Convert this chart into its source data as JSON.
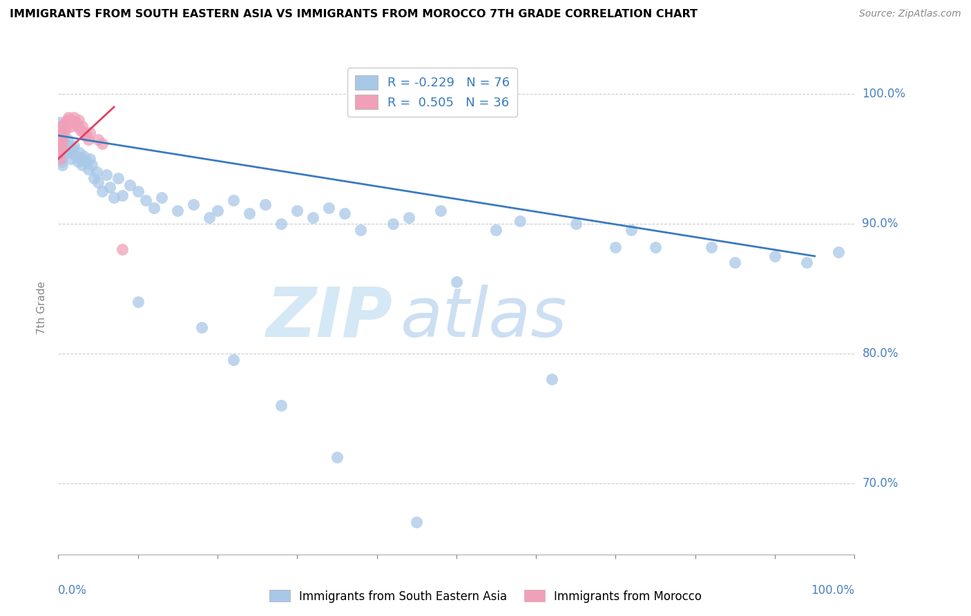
{
  "title": "IMMIGRANTS FROM SOUTH EASTERN ASIA VS IMMIGRANTS FROM MOROCCO 7TH GRADE CORRELATION CHART",
  "source": "Source: ZipAtlas.com",
  "ylabel": "7th Grade",
  "legend1_label": "Immigrants from South Eastern Asia",
  "legend2_label": "Immigrants from Morocco",
  "R1": "-0.229",
  "N1": "76",
  "R2": "0.505",
  "N2": "36",
  "color_blue": "#a8c8e8",
  "color_pink": "#f0a0b8",
  "line_blue": "#3a7abf",
  "line_pink": "#e04060",
  "ytick_vals": [
    0.7,
    0.8,
    0.9,
    1.0
  ],
  "ytick_labels": [
    "70.0%",
    "80.0%",
    "90.0%",
    "100.0%"
  ],
  "xlim": [
    0.0,
    1.0
  ],
  "ylim": [
    0.645,
    1.025
  ],
  "blue_dots_x": [
    0.001,
    0.001,
    0.002,
    0.002,
    0.002,
    0.003,
    0.003,
    0.004,
    0.004,
    0.005,
    0.005,
    0.006,
    0.007,
    0.008,
    0.009,
    0.01,
    0.011,
    0.012,
    0.013,
    0.015,
    0.016,
    0.018,
    0.02,
    0.022,
    0.025,
    0.027,
    0.028,
    0.03,
    0.032,
    0.035,
    0.038,
    0.04,
    0.042,
    0.045,
    0.048,
    0.05,
    0.055,
    0.06,
    0.065,
    0.07,
    0.075,
    0.08,
    0.09,
    0.1,
    0.11,
    0.12,
    0.13,
    0.15,
    0.17,
    0.19,
    0.2,
    0.22,
    0.24,
    0.26,
    0.28,
    0.3,
    0.32,
    0.34,
    0.36,
    0.38,
    0.42,
    0.44,
    0.48,
    0.5,
    0.55,
    0.58,
    0.62,
    0.65,
    0.7,
    0.72,
    0.75,
    0.82,
    0.85,
    0.9,
    0.94,
    0.98
  ],
  "blue_dots_y": [
    0.978,
    0.965,
    0.972,
    0.96,
    0.955,
    0.968,
    0.955,
    0.962,
    0.948,
    0.958,
    0.945,
    0.952,
    0.96,
    0.958,
    0.962,
    0.955,
    0.958,
    0.965,
    0.96,
    0.955,
    0.95,
    0.958,
    0.96,
    0.952,
    0.948,
    0.955,
    0.95,
    0.945,
    0.952,
    0.948,
    0.942,
    0.95,
    0.945,
    0.935,
    0.94,
    0.932,
    0.925,
    0.938,
    0.928,
    0.92,
    0.935,
    0.922,
    0.93,
    0.925,
    0.918,
    0.912,
    0.92,
    0.91,
    0.915,
    0.905,
    0.91,
    0.918,
    0.908,
    0.915,
    0.9,
    0.91,
    0.905,
    0.912,
    0.908,
    0.895,
    0.9,
    0.905,
    0.91,
    0.855,
    0.895,
    0.902,
    0.78,
    0.9,
    0.882,
    0.895,
    0.882,
    0.882,
    0.87,
    0.875,
    0.87,
    0.878
  ],
  "blue_outliers_x": [
    0.1,
    0.18,
    0.22,
    0.28,
    0.35,
    0.45
  ],
  "blue_outliers_y": [
    0.84,
    0.82,
    0.795,
    0.76,
    0.72,
    0.67
  ],
  "pink_dots_x": [
    0.001,
    0.001,
    0.001,
    0.002,
    0.002,
    0.002,
    0.003,
    0.003,
    0.004,
    0.004,
    0.005,
    0.005,
    0.006,
    0.007,
    0.008,
    0.009,
    0.01,
    0.011,
    0.012,
    0.013,
    0.015,
    0.016,
    0.018,
    0.02,
    0.022,
    0.024,
    0.026,
    0.028,
    0.03,
    0.032,
    0.035,
    0.038,
    0.04,
    0.05,
    0.055,
    0.08
  ],
  "pink_dots_y": [
    0.975,
    0.965,
    0.955,
    0.97,
    0.962,
    0.95,
    0.968,
    0.958,
    0.972,
    0.96,
    0.975,
    0.965,
    0.97,
    0.975,
    0.972,
    0.978,
    0.975,
    0.98,
    0.978,
    0.982,
    0.98,
    0.975,
    0.978,
    0.982,
    0.978,
    0.975,
    0.98,
    0.972,
    0.975,
    0.97,
    0.968,
    0.965,
    0.97,
    0.965,
    0.962,
    0.88
  ]
}
